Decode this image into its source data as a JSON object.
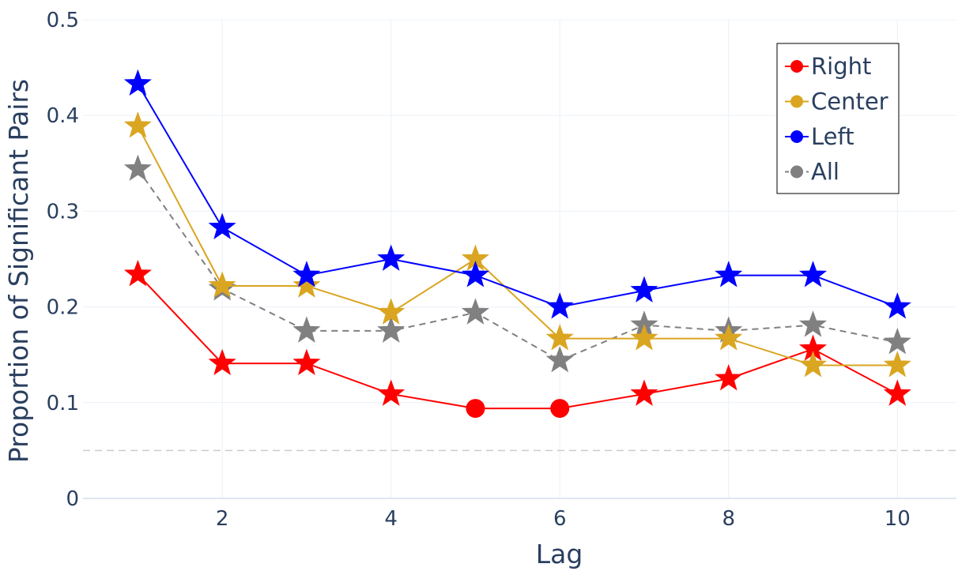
{
  "chart_data": {
    "type": "line",
    "title": "",
    "xlabel": "Lag",
    "ylabel": "Proportion of Significant Pairs",
    "xlim": [
      0.35,
      10.7
    ],
    "ylim": [
      0,
      0.5
    ],
    "x_ticks": [
      2,
      4,
      6,
      8,
      10
    ],
    "x_tick_labels": [
      "2",
      "4",
      "6",
      "8",
      "10"
    ],
    "y_ticks": [
      0,
      0.1,
      0.2,
      0.3,
      0.4,
      0.5
    ],
    "y_tick_labels": [
      "0",
      "0.1",
      "0.2",
      "0.3",
      "0.4",
      "0.5"
    ],
    "grid": true,
    "reference_line": {
      "y": 0.05,
      "style": "dashed",
      "color": "#cccccc"
    },
    "legend_position": "top-right",
    "x": [
      1,
      2,
      3,
      4,
      5,
      6,
      7,
      8,
      9,
      10
    ],
    "series": [
      {
        "name": "Right",
        "color": "#ff0000",
        "dash": "solid",
        "values": [
          0.234,
          0.141,
          0.141,
          0.109,
          0.094,
          0.094,
          0.109,
          0.125,
          0.156,
          0.109
        ],
        "markers": [
          "star",
          "star",
          "star",
          "star",
          "circle",
          "circle",
          "star",
          "star",
          "star",
          "star"
        ]
      },
      {
        "name": "Center",
        "color": "#daa520",
        "dash": "solid",
        "values": [
          0.389,
          0.222,
          0.222,
          0.194,
          0.25,
          0.167,
          0.167,
          0.167,
          0.139,
          0.139
        ],
        "markers": [
          "star",
          "star",
          "star",
          "star",
          "star",
          "star",
          "star",
          "star",
          "star",
          "star"
        ]
      },
      {
        "name": "Left",
        "color": "#0000ff",
        "dash": "solid",
        "values": [
          0.433,
          0.283,
          0.233,
          0.25,
          0.233,
          0.2,
          0.217,
          0.233,
          0.233,
          0.2
        ],
        "markers": [
          "star",
          "star",
          "star",
          "star",
          "star",
          "star",
          "star",
          "star",
          "star",
          "star"
        ]
      },
      {
        "name": "All",
        "color": "#808080",
        "dash": "dashed",
        "values": [
          0.344,
          0.219,
          0.175,
          0.175,
          0.194,
          0.144,
          0.181,
          0.175,
          0.181,
          0.163
        ],
        "markers": [
          "star",
          "star",
          "star",
          "star",
          "star",
          "star",
          "star",
          "star",
          "star",
          "star"
        ]
      }
    ]
  }
}
